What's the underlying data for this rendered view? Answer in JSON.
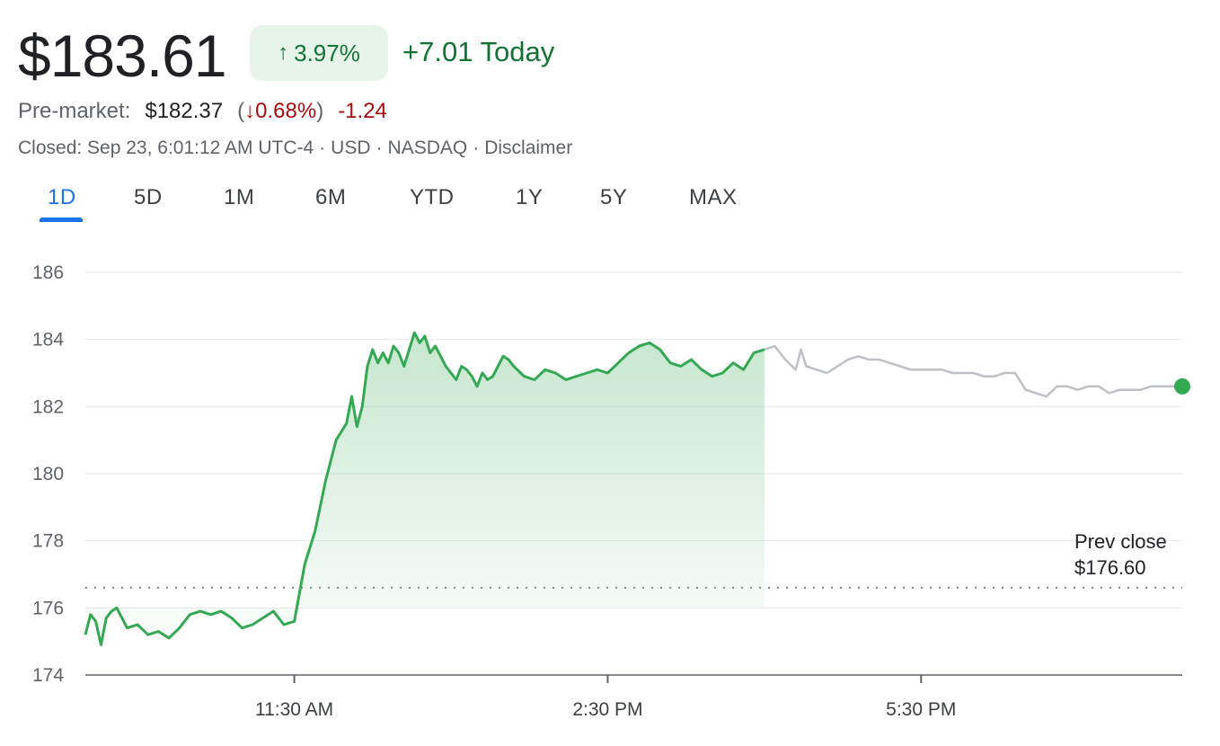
{
  "header": {
    "price": "$183.61",
    "change_pct": "3.97%",
    "change_direction": "up",
    "change_today": "+7.01 Today",
    "premarket_label": "Pre-market:",
    "premarket_price": "$182.37",
    "premarket_pct": "0.68%",
    "premarket_change": "-1.24",
    "meta_closed": "Closed: Sep 23, 6:01:12 AM UTC-4",
    "meta_currency": "USD",
    "meta_exchange": "NASDAQ",
    "meta_disclaimer": "Disclaimer",
    "separator": "·"
  },
  "tabs": [
    {
      "label": "1D",
      "active": true
    },
    {
      "label": "5D",
      "active": false
    },
    {
      "label": "1M",
      "active": false
    },
    {
      "label": "6M",
      "active": false
    },
    {
      "label": "YTD",
      "active": false
    },
    {
      "label": "1Y",
      "active": false
    },
    {
      "label": "5Y",
      "active": false
    },
    {
      "label": "MAX",
      "active": false
    }
  ],
  "colors": {
    "up": "#137333",
    "down": "#a50e0e",
    "line_regular": "#34a853",
    "line_after_hours": "#bdc1c6",
    "accent": "#1a73e8",
    "pill_bg": "#e6f4ea"
  },
  "chart_data": {
    "type": "line",
    "x_unit": "hours",
    "ylim": [
      174,
      186
    ],
    "yticks": [
      186,
      184,
      182,
      180,
      178,
      176,
      174
    ],
    "x_range": [
      9.5,
      20.0
    ],
    "xticks": [
      {
        "x": 11.5,
        "label": "11:30 AM"
      },
      {
        "x": 14.5,
        "label": "2:30 PM"
      },
      {
        "x": 17.5,
        "label": "5:30 PM"
      }
    ],
    "grid": true,
    "prev_close": 176.6,
    "prev_close_label_line1": "Prev close",
    "prev_close_label_line2": "$176.60",
    "series": [
      {
        "session": "regular",
        "x": [
          9.5,
          9.55,
          9.6,
          9.65,
          9.7,
          9.75,
          9.8,
          9.9,
          10.0,
          10.1,
          10.2,
          10.3,
          10.4,
          10.5,
          10.6,
          10.7,
          10.8,
          10.9,
          11.0,
          11.1,
          11.2,
          11.3,
          11.4,
          11.5,
          11.6,
          11.7,
          11.8,
          11.9,
          12.0,
          12.05,
          12.1,
          12.15,
          12.2,
          12.25,
          12.3,
          12.35,
          12.4,
          12.45,
          12.5,
          12.55,
          12.6,
          12.65,
          12.7,
          12.75,
          12.8,
          12.85,
          12.9,
          12.95,
          13.0,
          13.05,
          13.1,
          13.15,
          13.2,
          13.25,
          13.3,
          13.35,
          13.4,
          13.45,
          13.5,
          13.55,
          13.6,
          13.7,
          13.8,
          13.9,
          14.0,
          14.1,
          14.2,
          14.3,
          14.4,
          14.5,
          14.6,
          14.7,
          14.8,
          14.9,
          15.0,
          15.1,
          15.2,
          15.3,
          15.4,
          15.5,
          15.6,
          15.7,
          15.8,
          15.9,
          16.0
        ],
        "y": [
          175.2,
          175.8,
          175.6,
          174.9,
          175.7,
          175.9,
          176.0,
          175.4,
          175.5,
          175.2,
          175.3,
          175.1,
          175.4,
          175.8,
          175.9,
          175.8,
          175.9,
          175.7,
          175.4,
          175.5,
          175.7,
          175.9,
          175.5,
          175.6,
          177.3,
          178.3,
          179.8,
          181.0,
          181.5,
          182.3,
          181.4,
          182.0,
          183.2,
          183.7,
          183.3,
          183.6,
          183.3,
          183.8,
          183.6,
          183.2,
          183.7,
          184.2,
          183.9,
          184.1,
          183.6,
          183.8,
          183.5,
          183.2,
          183.0,
          182.8,
          183.2,
          183.1,
          182.9,
          182.6,
          183.0,
          182.8,
          182.9,
          183.2,
          183.5,
          183.4,
          183.2,
          182.9,
          182.8,
          183.1,
          183.0,
          182.8,
          182.9,
          183.0,
          183.1,
          183.0,
          183.3,
          183.6,
          183.8,
          183.9,
          183.7,
          183.3,
          183.2,
          183.4,
          183.1,
          182.9,
          183.0,
          183.3,
          183.1,
          183.6,
          183.7
        ]
      },
      {
        "session": "after-hours",
        "x": [
          16.0,
          16.1,
          16.2,
          16.3,
          16.35,
          16.4,
          16.5,
          16.6,
          16.7,
          16.8,
          16.9,
          17.0,
          17.1,
          17.2,
          17.3,
          17.4,
          17.5,
          17.6,
          17.7,
          17.8,
          17.9,
          18.0,
          18.1,
          18.2,
          18.3,
          18.4,
          18.5,
          18.6,
          18.7,
          18.8,
          18.9,
          19.0,
          19.1,
          19.2,
          19.3,
          19.4,
          19.5,
          19.6,
          19.7,
          19.8,
          19.9,
          20.0
        ],
        "y": [
          183.7,
          183.8,
          183.4,
          183.1,
          183.7,
          183.2,
          183.1,
          183.0,
          183.2,
          183.4,
          183.5,
          183.4,
          183.4,
          183.3,
          183.2,
          183.1,
          183.1,
          183.1,
          183.1,
          183.0,
          183.0,
          183.0,
          182.9,
          182.9,
          183.0,
          183.0,
          182.5,
          182.4,
          182.3,
          182.6,
          182.6,
          182.5,
          182.6,
          182.6,
          182.4,
          182.5,
          182.5,
          182.5,
          182.6,
          182.6,
          182.6,
          182.6
        ]
      }
    ]
  }
}
